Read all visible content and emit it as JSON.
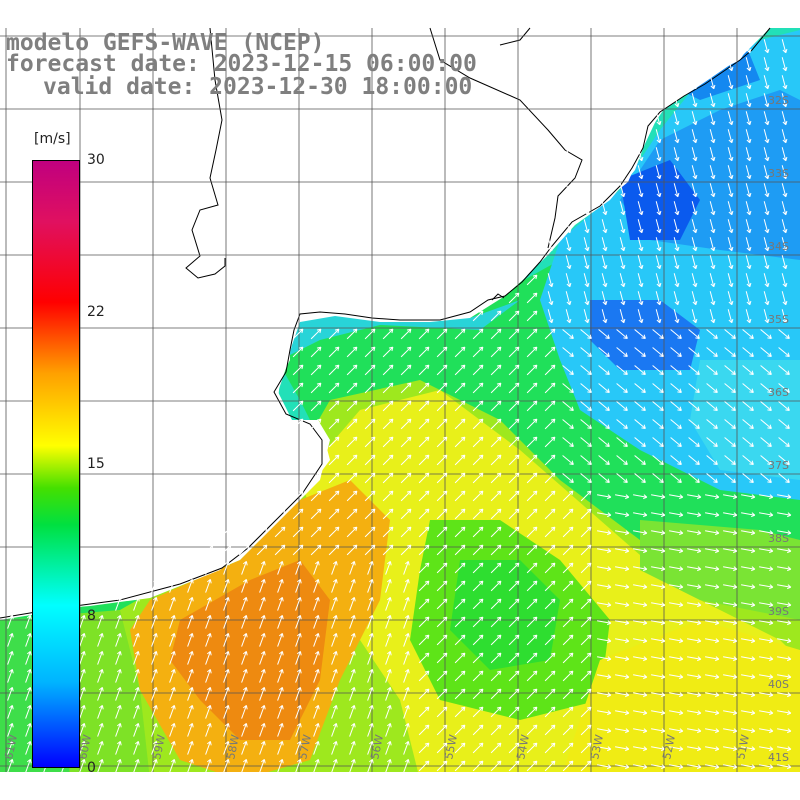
{
  "title": {
    "line1": "modelo GEFS-WAVE (NCEP)",
    "line2": "forecast date: 2023-12-15 06:00:00",
    "line3": "valid date: 2023-12-30 18:00:00"
  },
  "colorbar": {
    "unit": "[m/s]",
    "ticks": [
      "30",
      "22",
      "15",
      "8",
      "0"
    ],
    "colors": [
      "#0000ff",
      "#00b4ff",
      "#00ffff",
      "#00e040",
      "#ffff00",
      "#ffa000",
      "#ff0000",
      "#c0007f"
    ]
  },
  "map": {
    "lat_labels": [
      "32S",
      "33S",
      "34S",
      "35S",
      "36S",
      "37S",
      "38S",
      "39S",
      "40S",
      "41S"
    ],
    "lon_labels": [
      "61W",
      "60W",
      "59W",
      "58W",
      "57W",
      "56W",
      "55W",
      "54W",
      "53W",
      "52W",
      "51W"
    ]
  }
}
